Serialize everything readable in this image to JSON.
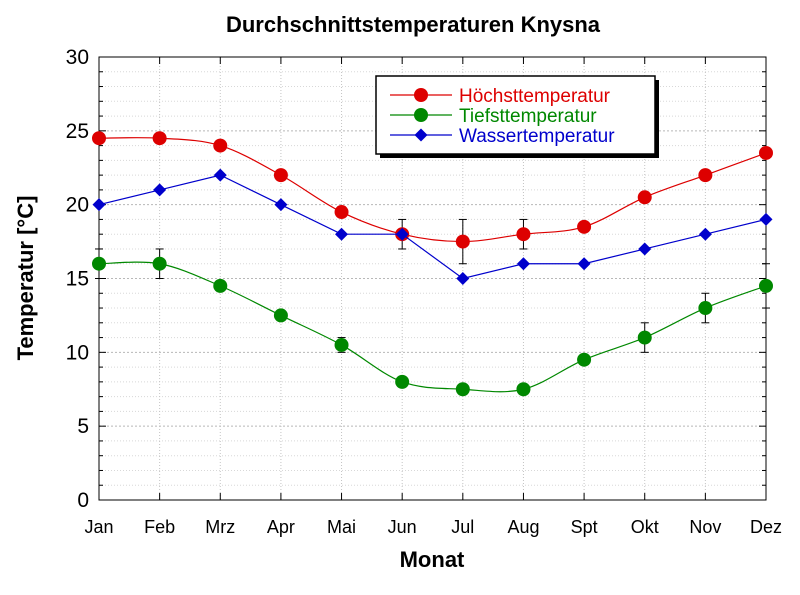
{
  "chart_data": {
    "type": "line",
    "title": "Durchschnittstemperaturen Knysna",
    "xlabel": "Monat",
    "ylabel": "Temperatur [°C]",
    "ylim": [
      0,
      30
    ],
    "yticks": [
      0,
      5,
      10,
      15,
      20,
      25,
      30
    ],
    "grid": true,
    "legend_position": "top-right",
    "categories": [
      "Jan",
      "Feb",
      "Mrz",
      "Apr",
      "Mai",
      "Jun",
      "Jul",
      "Aug",
      "Spt",
      "Okt",
      "Nov",
      "Dez"
    ],
    "series": [
      {
        "name": "Höchsttemperatur",
        "color": "#dd0000",
        "marker": "circle",
        "values": [
          24.5,
          24.5,
          24.0,
          22.0,
          19.5,
          18.0,
          17.5,
          18.0,
          18.5,
          20.5,
          22.0,
          23.5
        ],
        "errors": [
          null,
          null,
          null,
          null,
          null,
          1.0,
          1.5,
          1.0,
          null,
          null,
          null,
          null
        ]
      },
      {
        "name": "Tiefsttemperatur",
        "color": "#008800",
        "marker": "circle",
        "values": [
          16.0,
          16.0,
          14.5,
          12.5,
          10.5,
          8.0,
          7.5,
          7.5,
          9.5,
          11.0,
          13.0,
          14.5
        ],
        "errors": [
          1.0,
          1.0,
          null,
          null,
          0.5,
          null,
          null,
          null,
          null,
          1.0,
          1.0,
          1.5
        ]
      },
      {
        "name": "Wassertemperatur",
        "color": "#0000cc",
        "marker": "diamond",
        "values": [
          20,
          21,
          22,
          20,
          18,
          18,
          15,
          16,
          16,
          17,
          18,
          19
        ],
        "errors": [
          null,
          null,
          null,
          null,
          null,
          null,
          null,
          null,
          null,
          null,
          null,
          null
        ]
      }
    ]
  }
}
